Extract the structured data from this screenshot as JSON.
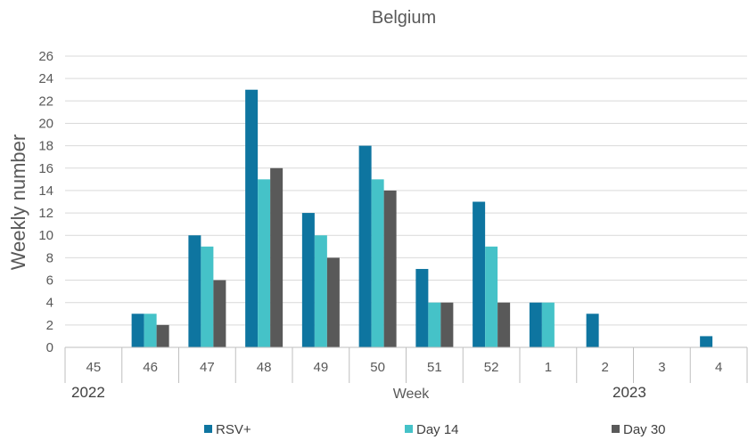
{
  "chart_data": {
    "type": "bar",
    "title": "Belgium",
    "xlabel": "Week",
    "ylabel": "Weekly number",
    "categories": [
      "45",
      "46",
      "47",
      "48",
      "49",
      "50",
      "51",
      "52",
      "1",
      "2",
      "3",
      "4"
    ],
    "year_labels": [
      "2022",
      "2023"
    ],
    "ylim": [
      0,
      26
    ],
    "ytick_step": 2,
    "grid": true,
    "legend_position": "bottom",
    "series": [
      {
        "name": "RSV+",
        "color": "#0E75A0",
        "values": [
          0,
          3,
          10,
          23,
          12,
          18,
          7,
          13,
          4,
          3,
          0,
          1
        ]
      },
      {
        "name": "Day 14",
        "color": "#45C2C8",
        "values": [
          0,
          3,
          9,
          15,
          10,
          15,
          4,
          9,
          4,
          0,
          0,
          0
        ]
      },
      {
        "name": "Day 30",
        "color": "#595959",
        "values": [
          0,
          2,
          6,
          16,
          8,
          14,
          4,
          4,
          0,
          0,
          0,
          0
        ]
      }
    ]
  }
}
